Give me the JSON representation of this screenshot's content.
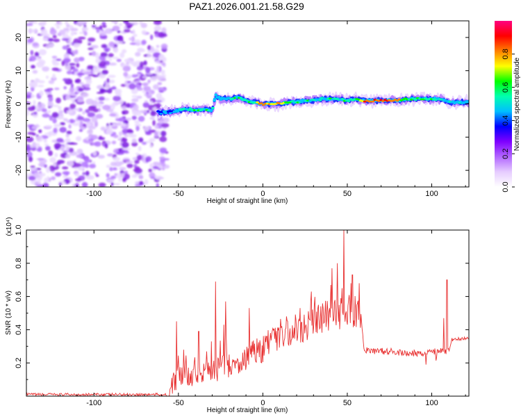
{
  "title": "PAZ1.2026.001.21.58.G29",
  "chart_data": [
    {
      "type": "heatmap",
      "name": "spectrogram",
      "xlabel": "Height of straight line (km)",
      "ylabel": "Frequency (Hz)",
      "xlim": [
        -140,
        122
      ],
      "ylim": [
        -25,
        25
      ],
      "xticks": [
        -100,
        -50,
        0,
        50,
        100
      ],
      "yticks": [
        -20,
        -10,
        0,
        10,
        20
      ],
      "xtick_labels": [
        "-100",
        "-50",
        "0",
        "50",
        "100"
      ],
      "ytick_labels": [
        "-20",
        "-10",
        "0",
        "10",
        "20"
      ],
      "noise_region_x": [
        -140,
        -57
      ],
      "signal_track": {
        "x": [
          -62,
          -55,
          -50,
          -45,
          -40,
          -35,
          -30,
          -28,
          -25,
          -20,
          -15,
          -10,
          -5,
          0,
          5,
          10,
          15,
          20,
          25,
          30,
          35,
          40,
          45,
          50,
          55,
          60,
          65,
          70,
          75,
          80,
          85,
          90,
          95,
          100,
          105,
          110,
          115,
          122
        ],
        "freq": [
          -2.5,
          -2.5,
          -2,
          -1.5,
          -2,
          -1.5,
          -2,
          2.5,
          1.5,
          1.5,
          2,
          1,
          0.5,
          0,
          0,
          0,
          0.5,
          0.5,
          1,
          1,
          1.5,
          1.5,
          1.5,
          1,
          1.5,
          1,
          1,
          1,
          1,
          1,
          1.5,
          1.5,
          1.5,
          1.5,
          1.5,
          0.5,
          0.5,
          0.5
        ],
        "amplitude": [
          0.35,
          0.35,
          0.5,
          0.55,
          0.6,
          0.55,
          0.5,
          0.4,
          0.45,
          0.5,
          0.55,
          0.55,
          0.6,
          0.85,
          0.8,
          0.8,
          0.6,
          0.55,
          0.55,
          0.55,
          0.55,
          0.55,
          0.5,
          0.55,
          0.55,
          0.85,
          0.85,
          0.85,
          0.85,
          0.8,
          0.6,
          0.6,
          0.6,
          0.55,
          0.5,
          0.5,
          0.45,
          0.45
        ]
      },
      "colorbar": {
        "label": "Normalized spectral amplitude",
        "range": [
          0,
          1
        ],
        "ticks": [
          0.0,
          0.2,
          0.4,
          0.6,
          0.8
        ],
        "tick_labels": [
          "0.0",
          "0.2",
          "0.4",
          "0.6",
          "0.8"
        ],
        "colormap": [
          "#ffffff",
          "#e6ccff",
          "#b266ff",
          "#7f00ff",
          "#0000ff",
          "#00bfff",
          "#00ffb0",
          "#00ff00",
          "#ffff00",
          "#ff8000",
          "#ff0000",
          "#ff0080"
        ]
      }
    },
    {
      "type": "line",
      "name": "snr",
      "xlabel": "Height of straight line (km)",
      "ylabel": "SNR (10 * v/v)",
      "scale_note": "(x10⁴)",
      "xlim": [
        -140,
        122
      ],
      "ylim": [
        0,
        1.0
      ],
      "xticks": [
        -100,
        -50,
        0,
        50,
        100
      ],
      "yticks": [
        0.2,
        0.4,
        0.6,
        0.8,
        1.0
      ],
      "xtick_labels": [
        "-100",
        "-50",
        "0",
        "50",
        "100"
      ],
      "ytick_labels": [
        "0.2",
        "0.4",
        "0.6",
        "0.8",
        "1.0"
      ],
      "color": "#e83030",
      "base_x": [
        -140,
        -57,
        -55,
        -52,
        -50,
        -45,
        -40,
        -35,
        -30,
        -25,
        -20,
        -15,
        -10,
        -5,
        0,
        5,
        10,
        15,
        20,
        25,
        30,
        35,
        40,
        45,
        50,
        55,
        58,
        60,
        65,
        70,
        75,
        80,
        85,
        90,
        95,
        100,
        105,
        110,
        112,
        122
      ],
      "base_y": [
        0.01,
        0.01,
        0.04,
        0.08,
        0.12,
        0.12,
        0.13,
        0.14,
        0.15,
        0.17,
        0.18,
        0.2,
        0.23,
        0.26,
        0.28,
        0.31,
        0.34,
        0.37,
        0.39,
        0.42,
        0.44,
        0.47,
        0.49,
        0.5,
        0.51,
        0.52,
        0.5,
        0.28,
        0.27,
        0.27,
        0.27,
        0.26,
        0.26,
        0.26,
        0.26,
        0.27,
        0.27,
        0.27,
        0.34,
        0.35
      ],
      "spikes_x": [
        -51,
        -47,
        -38,
        -28,
        -23,
        -22,
        -8,
        22,
        41,
        44,
        47,
        48,
        52,
        53,
        57,
        107,
        109
      ],
      "spikes_y": [
        0.45,
        0.28,
        0.39,
        0.69,
        0.43,
        0.57,
        0.53,
        0.53,
        0.77,
        0.8,
        0.65,
        1.0,
        0.68,
        0.73,
        0.68,
        0.47,
        0.7
      ]
    }
  ]
}
